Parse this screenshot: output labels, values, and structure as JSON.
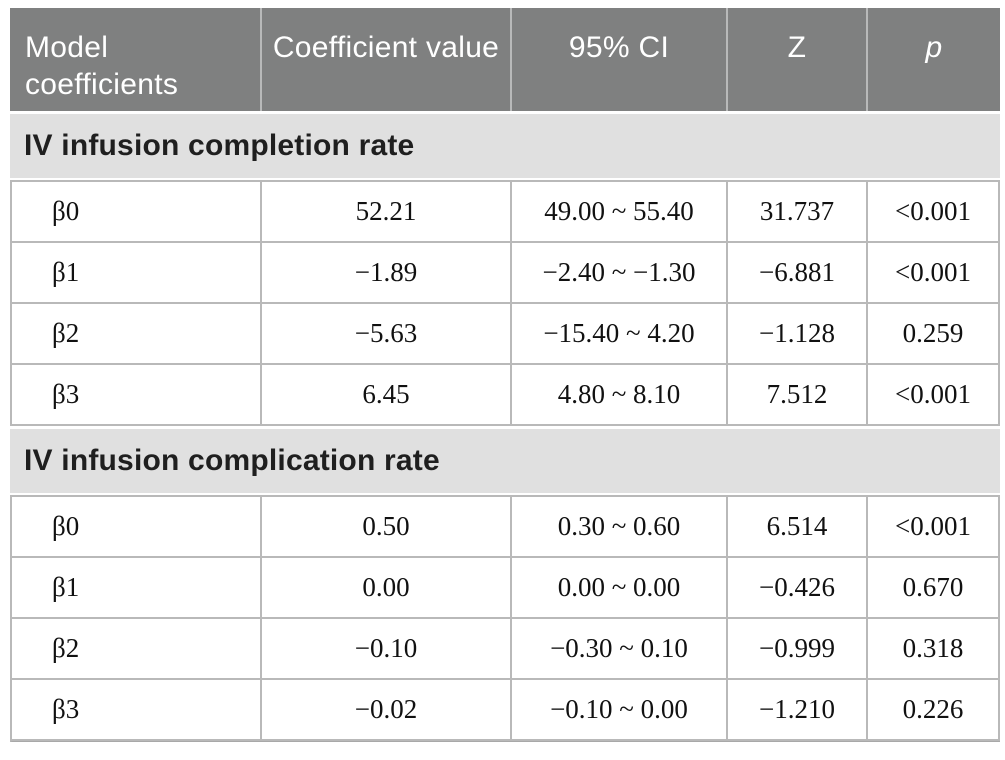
{
  "table": {
    "columns": {
      "model": "Model coefficients",
      "coefficient": "Coefficient value",
      "ci": "95% CI",
      "z": "Z",
      "p": "p"
    },
    "sections": [
      {
        "title": "IV infusion completion rate",
        "rows": [
          {
            "label": "β0",
            "coefficient": "52.21",
            "ci": "49.00 ~ 55.40",
            "z": "31.737",
            "p": "<0.001"
          },
          {
            "label": "β1",
            "coefficient": "−1.89",
            "ci": "−2.40 ~ −1.30",
            "z": "−6.881",
            "p": "<0.001"
          },
          {
            "label": "β2",
            "coefficient": "−5.63",
            "ci": "−15.40 ~ 4.20",
            "z": "−1.128",
            "p": "0.259"
          },
          {
            "label": "β3",
            "coefficient": "6.45",
            "ci": "4.80 ~ 8.10",
            "z": "7.512",
            "p": "<0.001"
          }
        ]
      },
      {
        "title": "IV infusion complication rate",
        "rows": [
          {
            "label": "β0",
            "coefficient": "0.50",
            "ci": "0.30 ~ 0.60",
            "z": "6.514",
            "p": "<0.001"
          },
          {
            "label": "β1",
            "coefficient": "0.00",
            "ci": "0.00 ~ 0.00",
            "z": "−0.426",
            "p": "0.670"
          },
          {
            "label": "β2",
            "coefficient": "−0.10",
            "ci": "−0.30 ~ 0.10",
            "z": "−0.999",
            "p": "0.318"
          },
          {
            "label": "β3",
            "coefficient": "−0.02",
            "ci": "−0.10 ~ 0.00",
            "z": "−1.210",
            "p": "0.226"
          }
        ]
      }
    ]
  },
  "colors": {
    "header_bg": "#7f8080",
    "header_text": "#ffffff",
    "section_bg": "#e0e0e0",
    "grid_line": "#b9b9b9",
    "body_text": "#111111"
  }
}
